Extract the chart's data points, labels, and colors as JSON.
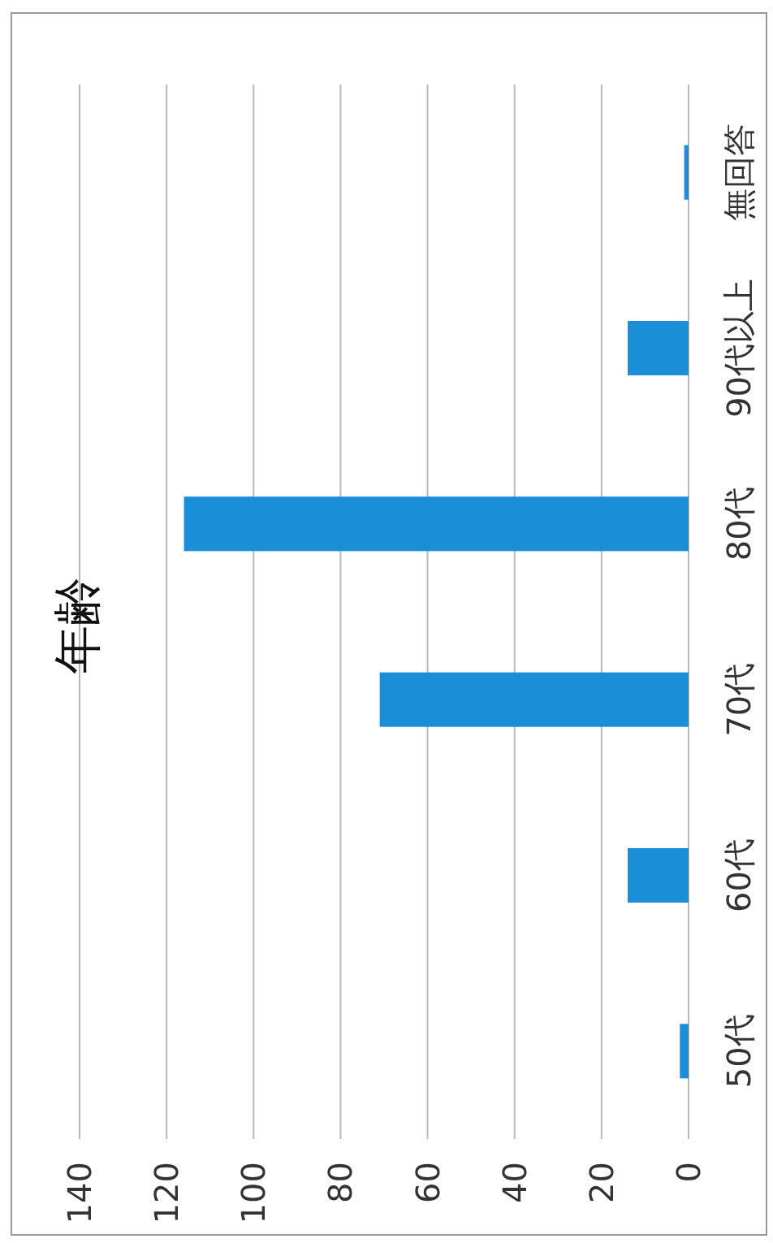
{
  "chart_data": {
    "type": "bar",
    "orientation": "horizontal",
    "title": "年齢",
    "categories": [
      "無回答",
      "90代以上",
      "80代",
      "70代",
      "60代",
      "50代"
    ],
    "values": [
      1,
      14,
      116,
      71,
      14,
      2
    ],
    "color": "#1a8fd8",
    "xlim": [
      140,
      0
    ],
    "xticks": [
      140,
      120,
      100,
      80,
      60,
      40,
      20,
      0
    ],
    "grid": "x"
  }
}
